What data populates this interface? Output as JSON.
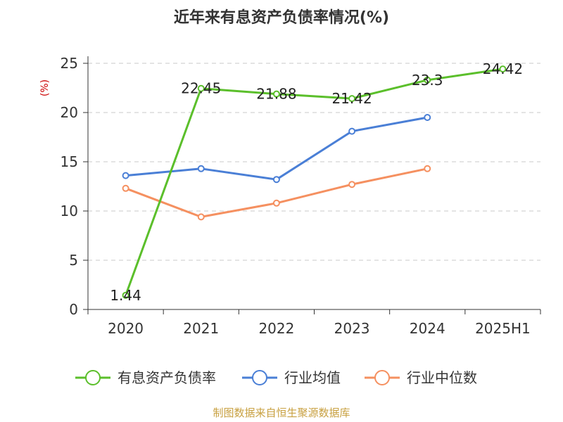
{
  "chart_data": {
    "type": "line",
    "title": "近年来有息资产负债率情况(%)",
    "ylabel": "(%)",
    "categories": [
      "2020",
      "2021",
      "2022",
      "2023",
      "2024",
      "2025H1"
    ],
    "ylim": [
      0,
      25
    ],
    "yticks": [
      0,
      5,
      10,
      15,
      20,
      25
    ],
    "grid": true,
    "legend_position": "bottom",
    "series": [
      {
        "name": "有息资产负债率",
        "color": "#5bbf2b",
        "values": [
          1.44,
          22.45,
          21.88,
          21.42,
          23.3,
          24.42
        ],
        "labels": [
          "1.44",
          "22.45",
          "21.88",
          "21.42",
          "23.3",
          "24.42"
        ]
      },
      {
        "name": "行业均值",
        "color": "#4a7fd6",
        "values": [
          13.6,
          14.3,
          13.2,
          18.1,
          19.5,
          null
        ]
      },
      {
        "name": "行业中位数",
        "color": "#f59060",
        "values": [
          12.3,
          9.4,
          10.8,
          12.7,
          14.3,
          null
        ]
      }
    ],
    "source": "制图数据来自恒生聚源数据库"
  }
}
